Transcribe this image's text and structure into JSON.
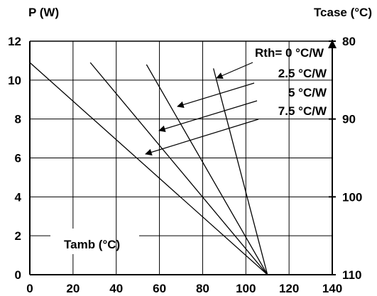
{
  "chart_data": {
    "type": "line",
    "y_axis_label": "P (W)",
    "right_axis_label": "Tcase (°C)",
    "x_axis_label": "Tamb (°C)",
    "x_ticks": [
      "0",
      "20",
      "40",
      "60",
      "80",
      "100",
      "120",
      "140"
    ],
    "y_ticks": [
      "0",
      "2",
      "4",
      "6",
      "8",
      "10",
      "12"
    ],
    "right_ticks": [
      "80",
      "90",
      "100",
      "110"
    ],
    "xlim": [
      0,
      140
    ],
    "ylim": [
      0,
      12
    ],
    "right_axis_range": [
      110,
      80
    ],
    "grid": true,
    "series": [
      {
        "name": "Rth= 0 °C/W",
        "x": [
          85,
          110
        ],
        "y": [
          10.6,
          0
        ]
      },
      {
        "name": "2.5 °C/W",
        "x": [
          54,
          110
        ],
        "y": [
          10.8,
          0
        ]
      },
      {
        "name": "5 °C/W",
        "x": [
          28,
          110
        ],
        "y": [
          10.9,
          0
        ]
      },
      {
        "name": "7.5 °C/W",
        "x": [
          0,
          110
        ],
        "y": [
          10.9,
          0
        ]
      }
    ],
    "legend_labels": [
      "Rth= 0 °C/W",
      "2.5 °C/W",
      "5 °C/W",
      "7.5 °C/W"
    ]
  },
  "colors": {
    "line": "#000000",
    "grid": "#000000",
    "background": "#ffffff"
  }
}
